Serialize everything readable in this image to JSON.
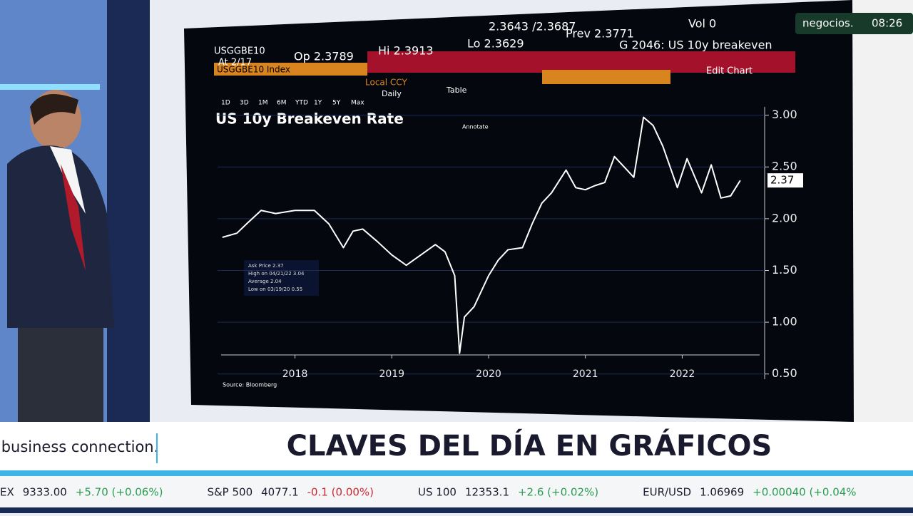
{
  "chart_data": {
    "type": "line",
    "title": "US 10y Breakeven Rate",
    "x": [
      2017.75,
      2017.9,
      2018.0,
      2018.15,
      2018.3,
      2018.5,
      2018.7,
      2018.85,
      2019.0,
      2019.1,
      2019.2,
      2019.35,
      2019.5,
      2019.65,
      2019.8,
      2019.95,
      2020.05,
      2020.15,
      2020.2,
      2020.25,
      2020.35,
      2020.5,
      2020.6,
      2020.7,
      2020.85,
      2020.95,
      2021.05,
      2021.15,
      2021.3,
      2021.4,
      2021.5,
      2021.6,
      2021.7,
      2021.8,
      2021.9,
      2022.0,
      2022.1,
      2022.2,
      2022.3,
      2022.45,
      2022.55,
      2022.7,
      2022.8,
      2022.9,
      2023.0,
      2023.1
    ],
    "series": [
      {
        "name": "Ask Price",
        "color": "#ffffff",
        "values": [
          1.82,
          1.86,
          1.95,
          2.08,
          2.05,
          2.08,
          2.08,
          1.95,
          1.72,
          1.88,
          1.9,
          1.78,
          1.65,
          1.55,
          1.65,
          1.75,
          1.68,
          1.45,
          0.7,
          1.05,
          1.15,
          1.45,
          1.6,
          1.7,
          1.72,
          1.95,
          2.15,
          2.25,
          2.47,
          2.3,
          2.28,
          2.32,
          2.35,
          2.6,
          2.5,
          2.4,
          2.98,
          2.9,
          2.7,
          2.3,
          2.58,
          2.25,
          2.52,
          2.2,
          2.22,
          2.37
        ]
      }
    ],
    "xlim": [
      2017.7,
      2023.3
    ],
    "xticks": [
      {
        "value": 2018.5,
        "label": "2018"
      },
      {
        "value": 2019.5,
        "label": "2019"
      },
      {
        "value": 2020.5,
        "label": "2020"
      },
      {
        "value": 2021.5,
        "label": "2021"
      },
      {
        "value": 2022.5,
        "label": "2022"
      }
    ],
    "ylim": [
      0.45,
      3.08
    ],
    "yticks": [
      {
        "value": 0.5,
        "label": "0.50"
      },
      {
        "value": 1,
        "label": "1.00"
      },
      {
        "value": 1.5,
        "label": "1.50"
      },
      {
        "value": 2,
        "label": "2.00"
      },
      {
        "value": 2.5,
        "label": "2.50"
      },
      {
        "value": 3,
        "label": "3.00"
      }
    ],
    "grid": true,
    "last_value": {
      "value": 2.37,
      "label": "2.37"
    },
    "source": "Source: Bloomberg",
    "annotate": "Annotate",
    "legend_box": [
      "Ask Price 2.37",
      "High on 04/21/22 3.04",
      "Average 2.04",
      "Low on 03/19/20 0.55"
    ]
  },
  "terminal": {
    "ticker": "USGGBE10",
    "at": "At 2/17",
    "open": "Op 2.3789",
    "high": "Hi 2.3913",
    "low": "Lo 2.3629",
    "bid_ask": "2.3643 /2.3687",
    "prev": "Prev 2.3771",
    "vol": "Vol 0",
    "function": "G 2046: US 10y breakeven",
    "security": "USGGBE10 Index",
    "local": "Local CCY",
    "edit": "Edit Chart",
    "table": "Table",
    "daily": "Daily",
    "ranges": [
      "1D",
      "3D",
      "1M",
      "6M",
      "YTD",
      "1Y",
      "5Y",
      "Max"
    ]
  },
  "broadcast": {
    "channel": "negocios.",
    "time": "08:26",
    "brand": "business connection.",
    "headline": "CLAVES DEL DÍA EN GRÁFICOS",
    "ticker": [
      [
        "EX",
        "9333.00",
        "+5.70 (+0.06%)"
      ],
      [
        "S&P 500",
        "4077.1",
        "-0.1 (0.00%)"
      ],
      [
        "US 100",
        "12353.1",
        "+2.6 (+0.02%)"
      ],
      [
        "EUR/USD",
        "1.06969",
        "+0.00040 (+0.04%"
      ]
    ]
  }
}
